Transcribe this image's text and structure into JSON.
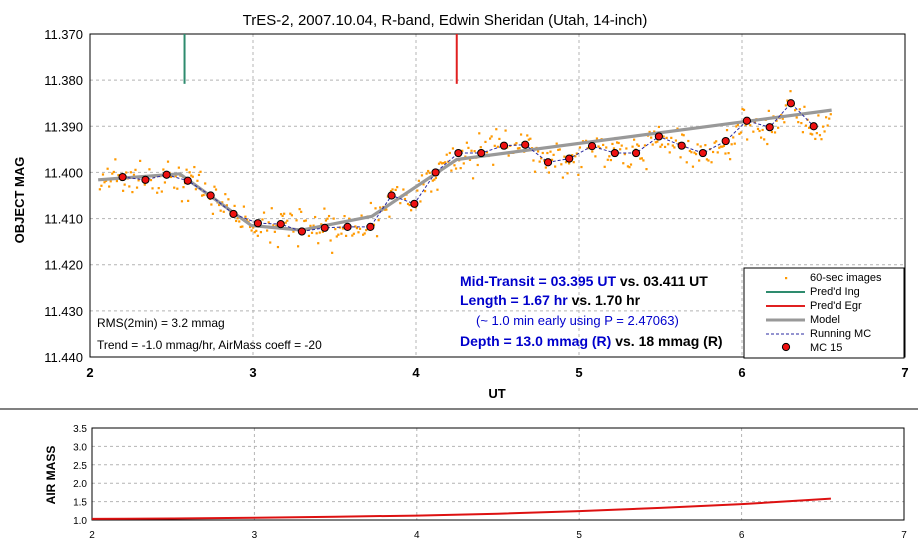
{
  "chart_data": [
    {
      "type": "scatter",
      "title": "TrES-2, 2007.10.04, R-band, Edwin Sheridan (Utah, 14-inch)",
      "xlabel": "UT",
      "ylabel": "OBJECT MAG",
      "xlim": [
        2,
        7
      ],
      "ylim": [
        11.44,
        11.37
      ],
      "y_inverted": true,
      "grid": true,
      "x_ticks": [
        "2",
        "3",
        "4",
        "5",
        "6",
        "7"
      ],
      "y_ticks": [
        "11.370",
        "11.380",
        "11.390",
        "11.400",
        "11.410",
        "11.420",
        "11.430",
        "11.440"
      ],
      "legend_position": "bottom-right",
      "legend": [
        "60-sec images",
        "Pred'd Ing",
        "Pred'd Egr",
        "Model",
        "Running MC",
        "MC 15"
      ],
      "colors": {
        "images": "#ff9900",
        "ingress": "#2e8b6e",
        "egress": "#e02020",
        "model": "#999999",
        "running": "#2a2aa0",
        "mc": "#ee1111"
      },
      "predicted_ingress": 2.58,
      "predicted_egress": 4.25,
      "model": {
        "x": [
          2.05,
          2.55,
          2.99,
          3.3,
          3.73,
          4.25,
          6.55
        ],
        "y": [
          11.4016,
          11.4003,
          11.4115,
          11.4125,
          11.4095,
          11.3972,
          11.3865
        ]
      },
      "mc15": {
        "x": [
          2.2,
          2.34,
          2.47,
          2.6,
          2.74,
          2.88,
          3.03,
          3.17,
          3.3,
          3.44,
          3.58,
          3.72,
          3.85,
          3.99,
          4.12,
          4.26,
          4.4,
          4.54,
          4.67,
          4.81,
          4.94,
          5.08,
          5.22,
          5.35,
          5.49,
          5.63,
          5.76,
          5.9,
          6.03,
          6.17,
          6.3,
          6.44
        ],
        "y": [
          11.401,
          11.4016,
          11.4005,
          11.4018,
          11.405,
          11.409,
          11.411,
          11.4112,
          11.4128,
          11.412,
          11.4118,
          11.4118,
          11.405,
          11.4068,
          11.4,
          11.3958,
          11.3958,
          11.3942,
          11.394,
          11.3978,
          11.397,
          11.3943,
          11.3958,
          11.3958,
          11.3922,
          11.3942,
          11.3958,
          11.3932,
          11.3888,
          11.3902,
          11.385,
          11.39
        ]
      },
      "annotations": {
        "mid_transit_a": "Mid-Transit = 03.395 UT",
        "mid_transit_b": " vs. 03.411 UT",
        "length_a": "Length = 1.67 hr",
        "length_b": " vs. 1.70 hr",
        "early_note": "(~ 1.0 min early using P = 2.47063)",
        "depth_a": "Depth = 13.0 mmag (R)",
        "depth_b": " vs. 18 mmag  (R)",
        "rms": "RMS(2min) = 3.2 mmag",
        "trend": "Trend = -1.0 mmag/hr, AirMass coeff = -20"
      }
    },
    {
      "type": "line",
      "xlabel": "",
      "ylabel": "AIR MASS",
      "xlim": [
        2,
        7
      ],
      "ylim": [
        1.0,
        3.5
      ],
      "x_ticks": [
        "2",
        "3",
        "4",
        "5",
        "6",
        "7"
      ],
      "y_ticks": [
        "1.0",
        "1.5",
        "2.0",
        "2.5",
        "3.0",
        "3.5"
      ],
      "grid": true,
      "series": [
        {
          "x": [
            2.0,
            2.5,
            3.0,
            3.5,
            4.0,
            4.5,
            5.0,
            5.5,
            6.0,
            6.55
          ],
          "y": [
            1.03,
            1.04,
            1.06,
            1.09,
            1.12,
            1.17,
            1.24,
            1.33,
            1.43,
            1.58
          ],
          "color": "#dd1111"
        }
      ]
    }
  ]
}
